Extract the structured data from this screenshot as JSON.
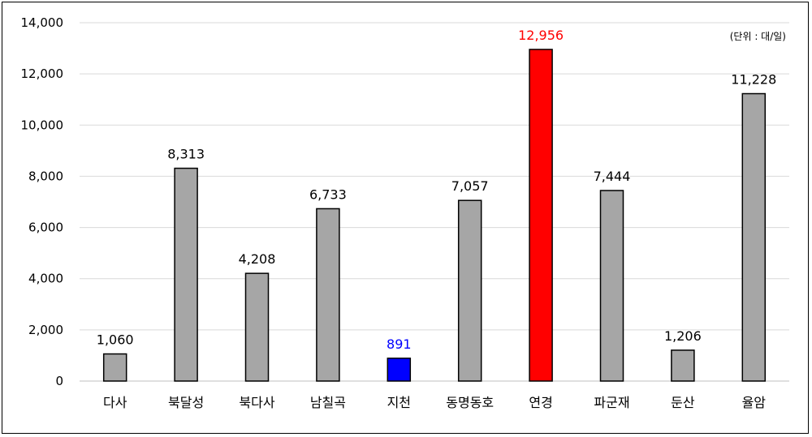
{
  "chart_data": {
    "type": "bar",
    "unit_note": "(단위 : 대/일)",
    "ylim": [
      0,
      14000
    ],
    "yticks": [
      0,
      2000,
      4000,
      6000,
      8000,
      10000,
      12000,
      14000
    ],
    "ytick_labels": [
      "0",
      "2,000",
      "4,000",
      "6,000",
      "8,000",
      "10,000",
      "12,000",
      "14,000"
    ],
    "grid": true,
    "categories": [
      "다사",
      "북달성",
      "북다사",
      "남칠곡",
      "지천",
      "동명동호",
      "연경",
      "파군재",
      "둔산",
      "율암"
    ],
    "values": [
      1060,
      8313,
      4208,
      6733,
      891,
      7057,
      12956,
      7444,
      1206,
      11228
    ],
    "value_labels": [
      "1,060",
      "8,313",
      "4,208",
      "6,733",
      "891",
      "7,057",
      "12,956",
      "7,444",
      "1,206",
      "11,228"
    ],
    "bar_colors": [
      "#a6a6a6",
      "#a6a6a6",
      "#a6a6a6",
      "#a6a6a6",
      "#0000ff",
      "#a6a6a6",
      "#ff0000",
      "#a6a6a6",
      "#a6a6a6",
      "#a6a6a6"
    ],
    "label_colors": [
      "#000000",
      "#000000",
      "#000000",
      "#000000",
      "#0000ff",
      "#000000",
      "#ff0000",
      "#000000",
      "#000000",
      "#000000"
    ]
  }
}
